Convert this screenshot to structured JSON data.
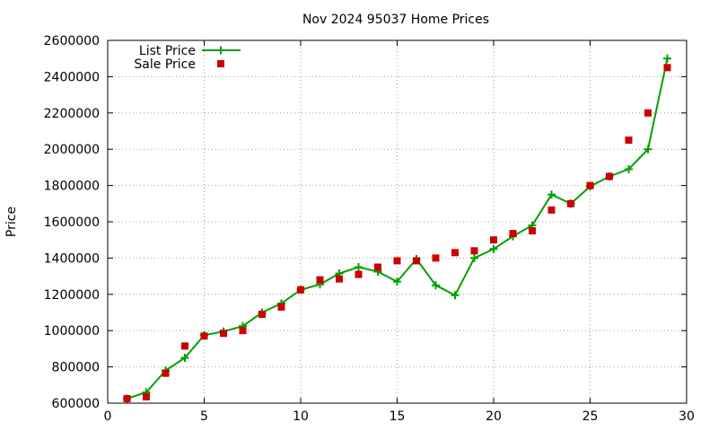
{
  "chart_data": {
    "type": "line",
    "title": "Nov 2024 95037 Home Prices",
    "xlabel": "",
    "ylabel": "Price",
    "xlim": [
      0,
      30
    ],
    "ylim": [
      600000,
      2600000
    ],
    "x_ticks": [
      0,
      5,
      10,
      15,
      20,
      25,
      30
    ],
    "y_ticks": [
      600000,
      800000,
      1000000,
      1200000,
      1400000,
      1600000,
      1800000,
      2000000,
      2200000,
      2400000,
      2600000
    ],
    "grid": true,
    "legend_position": "top-left",
    "series": [
      {
        "name": "List Price",
        "style": "linespoints",
        "color": "#00a000",
        "x": [
          1,
          2,
          3,
          4,
          5,
          6,
          7,
          8,
          9,
          10,
          11,
          12,
          13,
          14,
          15,
          16,
          17,
          18,
          19,
          20,
          21,
          22,
          23,
          24,
          25,
          26,
          27,
          28,
          29
        ],
        "y": [
          625000,
          660000,
          780000,
          850000,
          975000,
          995000,
          1025000,
          1100000,
          1150000,
          1225000,
          1255000,
          1315000,
          1350000,
          1325000,
          1270000,
          1395000,
          1250000,
          1195000,
          1400000,
          1450000,
          1520000,
          1580000,
          1750000,
          1700000,
          1795000,
          1850000,
          1890000,
          2000000,
          2500000
        ]
      },
      {
        "name": "Sale Price",
        "style": "points",
        "color": "#cc0000",
        "x": [
          1,
          2,
          3,
          4,
          5,
          6,
          7,
          8,
          9,
          10,
          11,
          12,
          13,
          14,
          15,
          16,
          17,
          18,
          19,
          20,
          21,
          22,
          23,
          24,
          25,
          26,
          27,
          28,
          29
        ],
        "y": [
          625000,
          635000,
          765000,
          915000,
          970000,
          985000,
          1000000,
          1090000,
          1130000,
          1225000,
          1280000,
          1285000,
          1310000,
          1350000,
          1385000,
          1385000,
          1400000,
          1430000,
          1440000,
          1500000,
          1535000,
          1550000,
          1665000,
          1700000,
          1800000,
          1850000,
          2050000,
          2200000,
          2450000
        ]
      }
    ]
  }
}
